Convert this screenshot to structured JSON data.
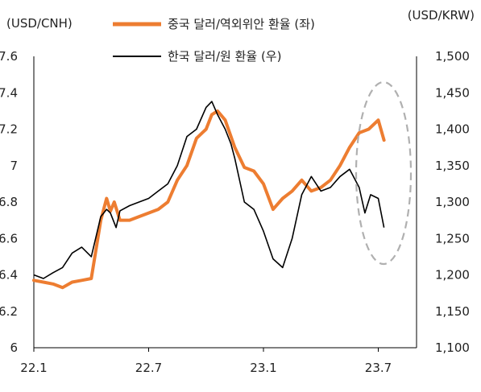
{
  "chart_data": {
    "type": "line",
    "title": "",
    "left_axis_unit": "(USD/CNH)",
    "right_axis_unit": "(USD/KRW)",
    "x_ticks": [
      "22.1",
      "22.7",
      "23.1",
      "23.7"
    ],
    "x_tick_months": [
      0,
      6,
      12,
      18
    ],
    "x_range_months": [
      0,
      20
    ],
    "left_ylim": [
      6.0,
      7.6
    ],
    "left_ticks": [
      "6",
      "6.2",
      "6.4",
      "6.6",
      "6.8",
      "7",
      "7.2",
      "7.4",
      "7.6"
    ],
    "right_ylim": [
      1100,
      1500
    ],
    "right_ticks": [
      "1,100",
      "1,150",
      "1,200",
      "1,250",
      "1,300",
      "1,350",
      "1,400",
      "1,450",
      "1,500"
    ],
    "grid": false,
    "legend": [
      "중국 달러/역외위안 환율 (좌)",
      "한국 달러/원 환율 (우)"
    ],
    "series": [
      {
        "name": "중국 달러/역외위안 환율 (좌)",
        "axis": "left",
        "color": "#ED7D31",
        "x": [
          0,
          0.5,
          1.0,
          1.5,
          2.0,
          2.5,
          3.0,
          3.5,
          3.8,
          4.0,
          4.2,
          4.5,
          5.0,
          5.5,
          6.0,
          6.5,
          7.0,
          7.5,
          8.0,
          8.5,
          9.0,
          9.3,
          9.6,
          10.0,
          10.5,
          11.0,
          11.5,
          12.0,
          12.5,
          13.0,
          13.5,
          14.0,
          14.5,
          15.0,
          15.5,
          16.0,
          16.5,
          17.0,
          17.5,
          18.0,
          18.3
        ],
        "values": [
          6.37,
          6.36,
          6.35,
          6.33,
          6.36,
          6.37,
          6.38,
          6.7,
          6.82,
          6.75,
          6.8,
          6.7,
          6.7,
          6.72,
          6.74,
          6.76,
          6.8,
          6.92,
          7.0,
          7.15,
          7.2,
          7.28,
          7.3,
          7.25,
          7.1,
          6.99,
          6.97,
          6.9,
          6.76,
          6.82,
          6.86,
          6.92,
          6.86,
          6.88,
          6.92,
          7.0,
          7.1,
          7.18,
          7.2,
          7.25,
          7.14
        ]
      },
      {
        "name": "한국 달러/원 환율 (우)",
        "axis": "right",
        "color": "#000000",
        "x": [
          0,
          0.5,
          1.0,
          1.5,
          2.0,
          2.5,
          3.0,
          3.5,
          3.8,
          4.0,
          4.3,
          4.5,
          5.0,
          5.5,
          6.0,
          6.5,
          7.0,
          7.5,
          8.0,
          8.5,
          9.0,
          9.3,
          9.6,
          10.0,
          10.3,
          10.5,
          11.0,
          11.5,
          12.0,
          12.5,
          13.0,
          13.5,
          14.0,
          14.5,
          15.0,
          15.5,
          16.0,
          16.5,
          17.0,
          17.3,
          17.6,
          18.0,
          18.3
        ],
        "values": [
          1200,
          1195,
          1203,
          1210,
          1230,
          1238,
          1225,
          1280,
          1290,
          1285,
          1265,
          1288,
          1295,
          1300,
          1305,
          1315,
          1325,
          1350,
          1390,
          1400,
          1430,
          1438,
          1420,
          1400,
          1380,
          1360,
          1300,
          1290,
          1260,
          1222,
          1210,
          1250,
          1310,
          1335,
          1315,
          1320,
          1335,
          1345,
          1320,
          1285,
          1310,
          1305,
          1265
        ]
      }
    ]
  }
}
